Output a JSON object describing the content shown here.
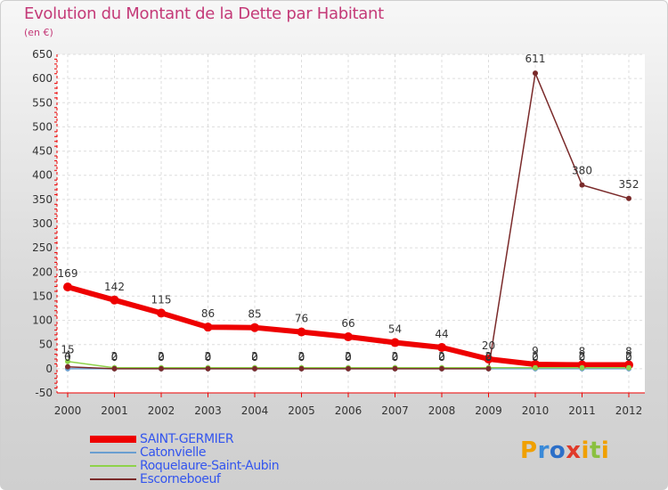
{
  "title": "Evolution du Montant de la Dette par Habitant",
  "subtitle": "(en €)",
  "logo": {
    "letters": [
      "P",
      "r",
      "o",
      "x",
      "i",
      "t",
      "i"
    ],
    "colors": [
      "#f0a000",
      "#3a8ad8",
      "#2c6fc8",
      "#e03a2a",
      "#f0a000",
      "#8ac040",
      "#f0a000"
    ]
  },
  "chart_data": {
    "type": "line",
    "x": [
      "2000",
      "2001",
      "2002",
      "2003",
      "2004",
      "2005",
      "2006",
      "2007",
      "2008",
      "2009",
      "2010",
      "2011",
      "2012"
    ],
    "ylim": [
      -50,
      650
    ],
    "yticks": [
      "-50",
      "0",
      "50",
      "100",
      "150",
      "200",
      "250",
      "300",
      "350",
      "400",
      "450",
      "500",
      "550",
      "600",
      "650"
    ],
    "grid": true,
    "legend_position": "bottom-left",
    "series": [
      {
        "name": "SAINT-GERMIER",
        "color": "#ee0000",
        "values": [
          169,
          142,
          115,
          86,
          85,
          76,
          66,
          54,
          44,
          20,
          9,
          8,
          8
        ],
        "labels": [
          "169",
          "142",
          "115",
          "86",
          "85",
          "76",
          "66",
          "54",
          "44",
          "20",
          "9",
          "8",
          "8"
        ]
      },
      {
        "name": "Catonvielle",
        "color": "#6a9ed0",
        "values": [
          0,
          0,
          0,
          0,
          0,
          0,
          0,
          0,
          0,
          0,
          0,
          0,
          0
        ],
        "labels": [
          "0",
          "0",
          "0",
          "0",
          "0",
          "0",
          "0",
          "0",
          "0",
          "0",
          "0",
          "0",
          "0"
        ]
      },
      {
        "name": "Roquelaure-Saint-Aubin",
        "color": "#8ed24a",
        "values": [
          15,
          2,
          2,
          2,
          2,
          2,
          2,
          2,
          2,
          2,
          2,
          2,
          2
        ],
        "labels": [
          "15",
          "2",
          "2",
          "2",
          "2",
          "2",
          "2",
          "2",
          "2",
          "2",
          "2",
          "2",
          "2"
        ]
      },
      {
        "name": "Escorneboeuf",
        "color": "#7a2a2a",
        "values": [
          4,
          0,
          0,
          0,
          0,
          0,
          0,
          0,
          0,
          0,
          611,
          380,
          352
        ],
        "labels": [
          "4",
          "0",
          "0",
          "0",
          "0",
          "0",
          "0",
          "0",
          "0",
          "0",
          "611",
          "380",
          "352"
        ]
      }
    ]
  }
}
